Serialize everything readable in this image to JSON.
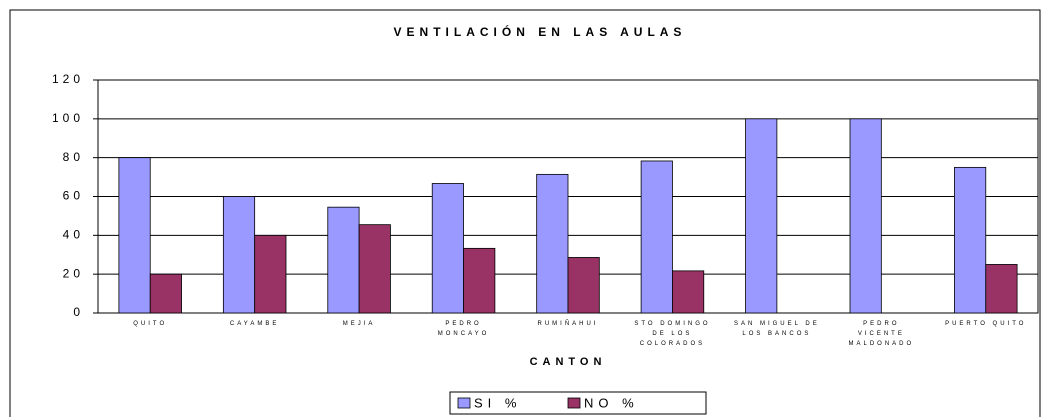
{
  "chart_data": {
    "type": "bar",
    "title": "VENTILACIÓN EN LAS AULAS",
    "x_label": "CANTON",
    "categories": [
      "QUITO",
      "CAYAMBE",
      "MEJIA",
      "PEDRO MONCAYO",
      "RUMIÑAHUI",
      "STO DOMINGO DE LOS COLORADOS",
      "SAN MIGUEL DE LOS BANCOS",
      "PEDRO VICENTE MALDONADO",
      "PUERTO QUITO"
    ],
    "series": [
      {
        "name": "SI %",
        "color": "#9999ff",
        "values": [
          80,
          60,
          54.5,
          66.7,
          71.4,
          78.3,
          100,
          100,
          75
        ]
      },
      {
        "name": "NO %",
        "color": "#993366",
        "values": [
          20,
          40,
          45.5,
          33.3,
          28.6,
          21.7,
          0,
          0,
          25
        ]
      }
    ],
    "ylim": [
      0,
      120
    ],
    "yticks": [
      0,
      20,
      40,
      60,
      80,
      100,
      120
    ],
    "grid": true,
    "legend": "bottom"
  }
}
